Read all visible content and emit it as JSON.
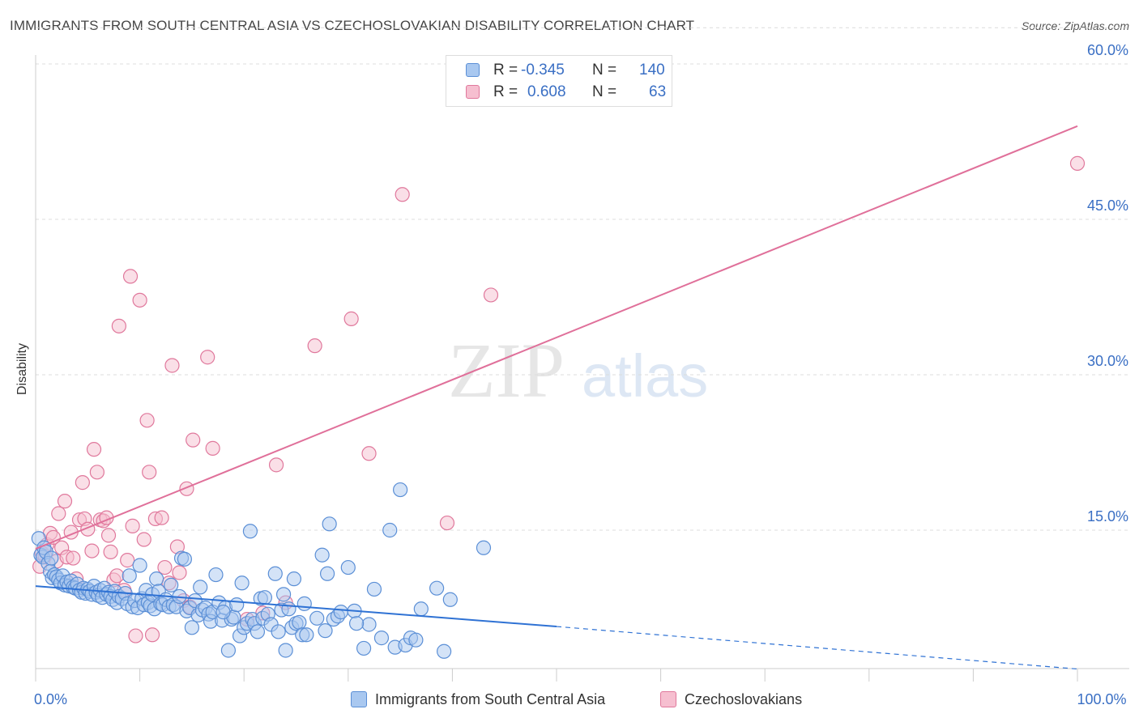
{
  "header": {
    "title": "IMMIGRANTS FROM SOUTH CENTRAL ASIA VS CZECHOSLOVAKIAN DISABILITY CORRELATION CHART",
    "source": "Source: ZipAtlas.com"
  },
  "watermark": {
    "zip": "ZIP",
    "atlas": "atlas"
  },
  "legend": {
    "r_label": "R =",
    "n_label": "N =",
    "rows": [
      {
        "r": "-0.345",
        "n": "140",
        "fill": "#a9c8f0",
        "stroke": "#5b8fd6"
      },
      {
        "r": "0.608",
        "n": "63",
        "fill": "#f6bfd0",
        "stroke": "#e0789c"
      }
    ]
  },
  "chart_data": {
    "type": "scatter",
    "title": "IMMIGRANTS FROM SOUTH CENTRAL ASIA VS CZECHOSLOVAKIAN DISABILITY CORRELATION CHART",
    "xlabel": "",
    "ylabel": "Disability",
    "xlim": [
      0,
      100
    ],
    "ylim": [
      0,
      64
    ],
    "x_tick_labels": [
      {
        "value": 0,
        "label": "0.0%"
      },
      {
        "value": 100,
        "label": "100.0%"
      }
    ],
    "y_tick_labels": [
      {
        "value": 15,
        "label": "15.0%"
      },
      {
        "value": 30,
        "label": "30.0%"
      },
      {
        "value": 45,
        "label": "45.0%"
      },
      {
        "value": 60,
        "label": "60.0%"
      }
    ],
    "x_minor_ticks": [
      0,
      10,
      20,
      30,
      40,
      50,
      60,
      70,
      80,
      90,
      100
    ],
    "grid": true,
    "legend_position": "top-center",
    "series": [
      {
        "name": "Immigrants from South Central Asia",
        "color": "#5b8fd6",
        "fill": "#a9c8f0",
        "trend": {
          "x0": 0,
          "y0": 9.6,
          "x1": 50,
          "y1": 5.7,
          "dashed_to_x": 100,
          "dashed_to_y": 1.6
        },
        "points": [
          [
            0.3,
            14.2
          ],
          [
            0.5,
            12.6
          ],
          [
            0.7,
            12.4
          ],
          [
            0.8,
            13.3
          ],
          [
            1.0,
            12.9
          ],
          [
            1.2,
            11.8
          ],
          [
            1.4,
            11.0
          ],
          [
            1.5,
            12.3
          ],
          [
            1.6,
            10.4
          ],
          [
            1.8,
            10.7
          ],
          [
            2.0,
            10.5
          ],
          [
            2.2,
            10.2
          ],
          [
            2.4,
            9.9
          ],
          [
            2.6,
            10.6
          ],
          [
            2.8,
            9.7
          ],
          [
            3.0,
            10.0
          ],
          [
            3.2,
            9.6
          ],
          [
            3.4,
            10.1
          ],
          [
            3.6,
            9.5
          ],
          [
            3.8,
            9.4
          ],
          [
            4.0,
            9.8
          ],
          [
            4.2,
            9.2
          ],
          [
            4.4,
            9.0
          ],
          [
            4.6,
            9.4
          ],
          [
            4.8,
            8.9
          ],
          [
            5.0,
            9.3
          ],
          [
            5.2,
            9.1
          ],
          [
            5.4,
            8.8
          ],
          [
            5.6,
            9.6
          ],
          [
            5.8,
            9.0
          ],
          [
            6.0,
            8.7
          ],
          [
            6.2,
            9.2
          ],
          [
            6.4,
            8.5
          ],
          [
            6.6,
            9.4
          ],
          [
            6.8,
            8.8
          ],
          [
            7.0,
            9.0
          ],
          [
            7.2,
            8.6
          ],
          [
            7.4,
            8.3
          ],
          [
            7.6,
            9.1
          ],
          [
            7.8,
            8.0
          ],
          [
            8.0,
            8.6
          ],
          [
            8.3,
            8.4
          ],
          [
            8.6,
            8.9
          ],
          [
            8.8,
            7.9
          ],
          [
            9.0,
            10.6
          ],
          [
            9.3,
            7.6
          ],
          [
            9.5,
            8.2
          ],
          [
            9.8,
            7.5
          ],
          [
            10.0,
            11.6
          ],
          [
            10.2,
            8.4
          ],
          [
            10.4,
            7.8
          ],
          [
            10.6,
            9.2
          ],
          [
            10.8,
            8.0
          ],
          [
            11.0,
            7.7
          ],
          [
            11.2,
            8.8
          ],
          [
            11.4,
            7.4
          ],
          [
            11.6,
            10.3
          ],
          [
            11.8,
            9.1
          ],
          [
            12.0,
            7.9
          ],
          [
            12.2,
            7.8
          ],
          [
            12.5,
            8.3
          ],
          [
            12.8,
            7.6
          ],
          [
            13.0,
            9.7
          ],
          [
            13.2,
            7.8
          ],
          [
            13.5,
            7.6
          ],
          [
            13.8,
            8.6
          ],
          [
            14.0,
            12.3
          ],
          [
            14.3,
            12.2
          ],
          [
            14.5,
            7.2
          ],
          [
            14.8,
            7.5
          ],
          [
            15.0,
            5.6
          ],
          [
            15.3,
            8.2
          ],
          [
            15.6,
            6.8
          ],
          [
            15.8,
            9.5
          ],
          [
            16.0,
            7.3
          ],
          [
            16.3,
            7.5
          ],
          [
            16.6,
            6.9
          ],
          [
            16.8,
            6.2
          ],
          [
            17.0,
            7.1
          ],
          [
            17.3,
            10.7
          ],
          [
            17.6,
            8.0
          ],
          [
            17.9,
            6.3
          ],
          [
            18.2,
            7.5
          ],
          [
            18.5,
            3.4
          ],
          [
            18.8,
            6.4
          ],
          [
            19.0,
            6.6
          ],
          [
            19.3,
            7.8
          ],
          [
            19.6,
            4.8
          ],
          [
            19.8,
            9.9
          ],
          [
            20.0,
            5.6
          ],
          [
            20.3,
            6.0
          ],
          [
            20.6,
            14.9
          ],
          [
            20.8,
            6.4
          ],
          [
            21.0,
            6.0
          ],
          [
            21.3,
            5.2
          ],
          [
            21.6,
            8.4
          ],
          [
            21.8,
            6.5
          ],
          [
            22.0,
            8.5
          ],
          [
            22.3,
            6.9
          ],
          [
            22.6,
            5.9
          ],
          [
            23.0,
            10.8
          ],
          [
            23.3,
            5.2
          ],
          [
            23.6,
            7.3
          ],
          [
            23.8,
            8.8
          ],
          [
            24.0,
            3.4
          ],
          [
            24.3,
            7.4
          ],
          [
            24.6,
            5.6
          ],
          [
            24.8,
            10.3
          ],
          [
            25.0,
            6.0
          ],
          [
            25.3,
            6.1
          ],
          [
            25.6,
            4.9
          ],
          [
            25.8,
            7.9
          ],
          [
            26.0,
            4.9
          ],
          [
            27.0,
            6.5
          ],
          [
            27.5,
            12.6
          ],
          [
            28.0,
            10.8
          ],
          [
            28.2,
            15.6
          ],
          [
            28.6,
            6.4
          ],
          [
            29.0,
            6.7
          ],
          [
            29.3,
            7.1
          ],
          [
            30.0,
            11.4
          ],
          [
            30.6,
            7.2
          ],
          [
            31.5,
            3.6
          ],
          [
            32.0,
            5.9
          ],
          [
            32.5,
            9.3
          ],
          [
            33.2,
            4.6
          ],
          [
            34.0,
            15.0
          ],
          [
            34.5,
            3.7
          ],
          [
            35.0,
            18.9
          ],
          [
            35.5,
            3.9
          ],
          [
            36.0,
            4.6
          ],
          [
            36.5,
            4.4
          ],
          [
            37.0,
            7.4
          ],
          [
            38.5,
            9.4
          ],
          [
            39.2,
            3.3
          ],
          [
            39.8,
            8.3
          ],
          [
            43.0,
            13.3
          ],
          [
            30.8,
            6.0
          ],
          [
            27.8,
            5.3
          ],
          [
            18.0,
            7.1
          ]
        ]
      },
      {
        "name": "Czechoslovakians",
        "color": "#e0789c",
        "fill": "#f6bfd0",
        "trend": {
          "x0": 0,
          "y0": 13.2,
          "x1": 100,
          "y1": 54.0
        },
        "points": [
          [
            0.4,
            11.5
          ],
          [
            0.6,
            12.8
          ],
          [
            0.9,
            12.5
          ],
          [
            1.1,
            13.6
          ],
          [
            1.4,
            14.7
          ],
          [
            1.7,
            14.3
          ],
          [
            2.0,
            12.0
          ],
          [
            2.2,
            16.6
          ],
          [
            2.5,
            13.3
          ],
          [
            2.8,
            17.8
          ],
          [
            3.0,
            12.4
          ],
          [
            3.4,
            14.8
          ],
          [
            3.6,
            12.3
          ],
          [
            3.9,
            10.3
          ],
          [
            4.2,
            16.0
          ],
          [
            4.5,
            19.6
          ],
          [
            4.7,
            16.1
          ],
          [
            5.0,
            15.1
          ],
          [
            5.4,
            13.0
          ],
          [
            5.6,
            22.8
          ],
          [
            5.9,
            20.6
          ],
          [
            6.2,
            16.0
          ],
          [
            6.5,
            15.9
          ],
          [
            6.8,
            16.2
          ],
          [
            7.0,
            14.5
          ],
          [
            7.2,
            12.9
          ],
          [
            7.5,
            10.2
          ],
          [
            7.8,
            10.6
          ],
          [
            8.0,
            34.7
          ],
          [
            8.5,
            9.2
          ],
          [
            8.8,
            12.1
          ],
          [
            9.1,
            39.5
          ],
          [
            9.3,
            15.4
          ],
          [
            9.6,
            4.8
          ],
          [
            10.0,
            37.2
          ],
          [
            10.4,
            14.1
          ],
          [
            10.7,
            25.6
          ],
          [
            10.9,
            20.6
          ],
          [
            11.2,
            4.9
          ],
          [
            11.5,
            16.1
          ],
          [
            12.1,
            16.2
          ],
          [
            12.4,
            11.4
          ],
          [
            12.8,
            9.9
          ],
          [
            13.1,
            30.9
          ],
          [
            13.6,
            13.4
          ],
          [
            13.8,
            10.9
          ],
          [
            14.2,
            8.2
          ],
          [
            14.5,
            19.0
          ],
          [
            15.1,
            23.7
          ],
          [
            16.5,
            31.7
          ],
          [
            17.0,
            22.9
          ],
          [
            20.3,
            6.4
          ],
          [
            21.8,
            7.0
          ],
          [
            23.1,
            21.3
          ],
          [
            24.0,
            8.0
          ],
          [
            26.8,
            32.8
          ],
          [
            30.3,
            35.4
          ],
          [
            32.0,
            22.4
          ],
          [
            35.2,
            47.4
          ],
          [
            39.5,
            15.7
          ],
          [
            43.7,
            37.7
          ],
          [
            100.0,
            50.4
          ],
          [
            14.8,
            7.6
          ]
        ]
      }
    ]
  }
}
